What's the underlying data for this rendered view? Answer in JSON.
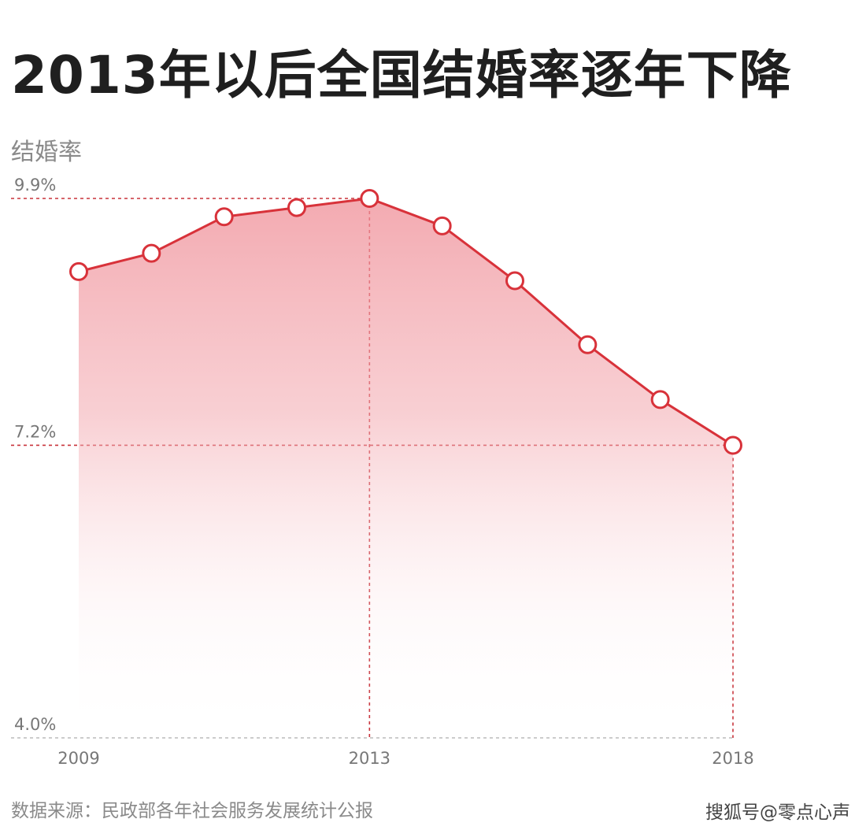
{
  "chart_data": {
    "type": "line",
    "title": "2013年以后全国结婚率逐年下降",
    "ylabel": "结婚率",
    "x": [
      2009,
      2010,
      2011,
      2012,
      2013,
      2014,
      2015,
      2016,
      2017,
      2018
    ],
    "series": [
      {
        "values": [
          9.1,
          9.3,
          9.7,
          9.8,
          9.9,
          9.6,
          9.0,
          8.3,
          7.7,
          7.2
        ]
      }
    ],
    "y_ticks": [
      {
        "value": 9.9,
        "label": "9.9%"
      },
      {
        "value": 7.2,
        "label": "7.2%"
      },
      {
        "value": 4.0,
        "label": "4.0%"
      }
    ],
    "x_ticks": [
      {
        "value": 2009,
        "label": "2009"
      },
      {
        "value": 2013,
        "label": "2013"
      },
      {
        "value": 2018,
        "label": "2018"
      }
    ],
    "ylim": [
      4.0,
      9.9
    ],
    "grid": false,
    "colors": {
      "line": "#d8323a",
      "fill": "#f08a93",
      "guide": "#c8323a",
      "axis": "#bbbbbb"
    }
  },
  "footer": {
    "source": "数据来源：民政部各年社会服务发展统计公报",
    "watermark": "搜狐号@零点心声"
  }
}
